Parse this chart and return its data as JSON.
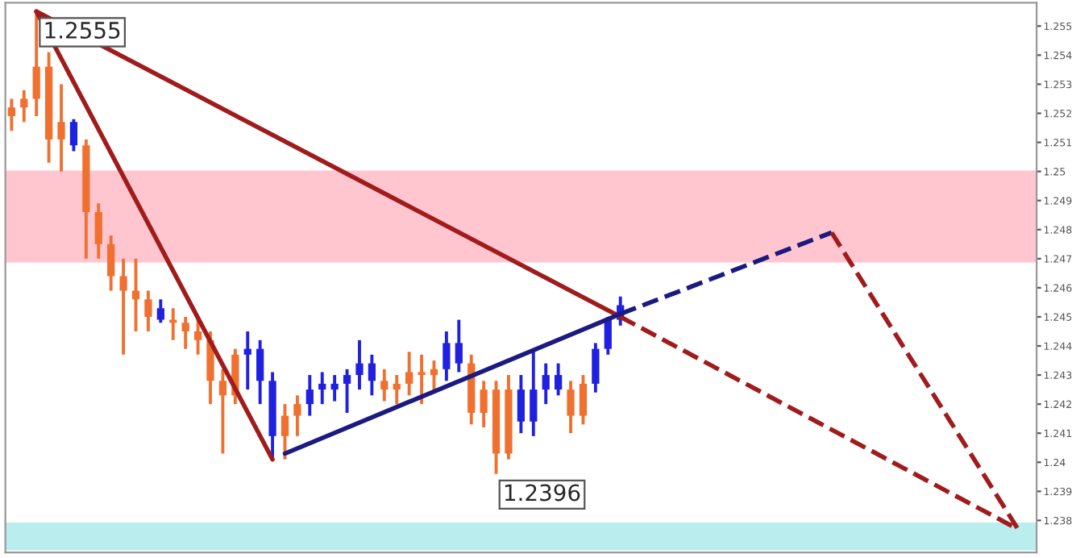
{
  "chart_data": {
    "type": "candlestick",
    "categories": [
      null,
      null,
      null,
      null,
      null,
      null,
      null,
      null,
      null,
      null,
      null,
      null,
      null,
      null,
      null,
      null,
      null,
      null,
      null,
      null,
      null,
      null,
      null,
      null,
      null,
      null,
      null,
      null,
      null,
      null,
      null,
      null,
      null,
      null,
      null,
      null,
      null,
      null,
      null,
      null,
      null,
      null,
      null,
      null,
      null,
      null,
      null,
      null,
      null,
      null,
      null,
      null,
      null,
      null,
      null,
      null,
      null,
      null,
      null,
      null,
      null,
      null,
      null,
      null,
      null,
      null,
      null,
      null,
      null,
      null,
      null,
      null,
      null,
      null,
      null,
      null,
      null,
      null,
      null,
      null,
      null,
      null,
      null
    ],
    "ohlc": [
      [
        1.2522,
        1.2525,
        1.2514,
        1.2519
      ],
      [
        1.2525,
        1.2528,
        1.2517,
        1.2522
      ],
      [
        1.2536,
        1.2555,
        1.2519,
        1.2525
      ],
      [
        1.2536,
        1.2541,
        1.2503,
        1.2511
      ],
      [
        1.2517,
        1.253,
        1.25,
        1.2511
      ],
      [
        1.2509,
        1.2518,
        1.2507,
        1.2517
      ],
      [
        1.2509,
        1.2511,
        1.247,
        1.2486
      ],
      [
        1.2486,
        1.2489,
        1.247,
        1.2475
      ],
      [
        1.2475,
        1.2478,
        1.2459,
        1.2464
      ],
      [
        1.2464,
        1.247,
        1.2437,
        1.2459
      ],
      [
        1.2459,
        1.247,
        1.2445,
        1.2456
      ],
      [
        1.2456,
        1.2459,
        1.2445,
        1.245
      ],
      [
        1.2449,
        1.2456,
        1.2448,
        1.2453
      ],
      [
        1.2449,
        1.2453,
        1.2442,
        1.2448
      ],
      [
        1.2448,
        1.245,
        1.2439,
        1.2445
      ],
      [
        1.2445,
        1.2449,
        1.2437,
        1.2442
      ],
      [
        1.2442,
        1.2445,
        1.242,
        1.2428
      ],
      [
        1.2428,
        1.2432,
        1.2403,
        1.2423
      ],
      [
        1.2437,
        1.2439,
        1.242,
        1.2423
      ],
      [
        1.2437,
        1.2445,
        1.2425,
        1.2439
      ],
      [
        1.2428,
        1.2442,
        1.242,
        1.2439
      ],
      [
        1.2409,
        1.2431,
        1.2401,
        1.2428
      ],
      [
        1.2416,
        1.242,
        1.2401,
        1.2409
      ],
      [
        1.242,
        1.2423,
        1.2409,
        1.2416
      ],
      [
        1.242,
        1.243,
        1.2416,
        1.2425
      ],
      [
        1.2425,
        1.2431,
        1.242,
        1.2427
      ],
      [
        1.2425,
        1.243,
        1.2421,
        1.2427
      ],
      [
        1.2427,
        1.2432,
        1.2417,
        1.243
      ],
      [
        1.243,
        1.2442,
        1.2425,
        1.2434
      ],
      [
        1.2428,
        1.2437,
        1.2423,
        1.2434
      ],
      [
        1.2428,
        1.2432,
        1.2421,
        1.2425
      ],
      [
        1.2427,
        1.243,
        1.242,
        1.2425
      ],
      [
        1.2431,
        1.2438,
        1.2423,
        1.2427
      ],
      [
        1.2431,
        1.2437,
        1.242,
        1.243
      ],
      [
        1.2432,
        1.2435,
        1.2425,
        1.243
      ],
      [
        1.2432,
        1.2445,
        1.2428,
        1.2441
      ],
      [
        1.2434,
        1.2449,
        1.2431,
        1.2441
      ],
      [
        1.2434,
        1.2437,
        1.2413,
        1.2417
      ],
      [
        1.2425,
        1.2428,
        1.2412,
        1.2417
      ],
      [
        1.2425,
        1.2428,
        1.2396,
        1.2403
      ],
      [
        1.2425,
        1.243,
        1.2401,
        1.2403
      ],
      [
        1.2414,
        1.243,
        1.241,
        1.2425
      ],
      [
        1.2414,
        1.2439,
        1.2409,
        1.2425
      ],
      [
        1.2425,
        1.2434,
        1.242,
        1.243
      ],
      [
        1.2425,
        1.2434,
        1.2423,
        1.243
      ],
      [
        1.2425,
        1.2428,
        1.241,
        1.2416
      ],
      [
        1.2427,
        1.243,
        1.2413,
        1.2416
      ],
      [
        1.2427,
        1.2441,
        1.2424,
        1.2439
      ],
      [
        1.2439,
        1.245,
        1.2437,
        1.2449
      ],
      [
        1.2449,
        1.2457,
        1.2447,
        1.2454
      ],
      null,
      null,
      null,
      null,
      null,
      null,
      null,
      null,
      null,
      null,
      null,
      null,
      null,
      null,
      null,
      null,
      null,
      null,
      null,
      null,
      null,
      null,
      null,
      null,
      null,
      null,
      null,
      null,
      null,
      null,
      null,
      null,
      null
    ],
    "colors": [
      "#f07030",
      "#f07030",
      "#f07030",
      "#f07030",
      "#f07030",
      "#2020e0",
      "#f07030",
      "#f07030",
      "#f07030",
      "#f07030",
      "#f07030",
      "#f07030",
      "#2020e0",
      "#f07030",
      "#f07030",
      "#f07030",
      "#f07030",
      "#f07030",
      "#f07030",
      "#2020e0",
      "#2020e0",
      "#2020e0",
      "#f07030",
      "#f07030",
      "#2020e0",
      "#2020e0",
      "#2020e0",
      "#2020e0",
      "#2020e0",
      "#2020e0",
      "#f07030",
      "#f07030",
      "#f07030",
      "#f07030",
      "#f07030",
      "#2020e0",
      "#2020e0",
      "#f07030",
      "#f07030",
      "#f07030",
      "#f07030",
      "#2020e0",
      "#2020e0",
      "#2020e0",
      "#2020e0",
      "#f07030",
      "#f07030",
      "#2020e0",
      "#2020e0",
      "#2020e0",
      null,
      null,
      null,
      null,
      null,
      null,
      null,
      null,
      null,
      null,
      null,
      null,
      null,
      null,
      null,
      null,
      null,
      null,
      null,
      null,
      null,
      null,
      null,
      null,
      null,
      null,
      null,
      null,
      null,
      null,
      null,
      null,
      null
    ],
    "series": [
      {
        "type": "line",
        "color": "#a01c1c",
        "line_style": "solid",
        "values": [
          null,
          null,
          1.2555,
          null,
          null,
          null,
          null,
          null,
          null,
          null,
          null,
          null,
          null,
          null,
          null,
          null,
          null,
          null,
          null,
          null,
          null,
          1.2401,
          null,
          null,
          null,
          null,
          null,
          null,
          null,
          null,
          null,
          null,
          null,
          null,
          null,
          null,
          null,
          null,
          null,
          null,
          null,
          null,
          null,
          null,
          null,
          null,
          null,
          null,
          null,
          null,
          null,
          null,
          null,
          null,
          null,
          null,
          null,
          null,
          null,
          null,
          null,
          null,
          null,
          null,
          null,
          null,
          null,
          null,
          null,
          null,
          null,
          null,
          null,
          null,
          null,
          null,
          null,
          null,
          null,
          null,
          null,
          null,
          null
        ]
      },
      {
        "type": "line",
        "color": "#a01c1c",
        "line_style": "solid",
        "values": [
          null,
          null,
          1.2555,
          null,
          null,
          null,
          null,
          null,
          null,
          null,
          null,
          null,
          null,
          null,
          null,
          null,
          null,
          null,
          null,
          null,
          null,
          null,
          null,
          null,
          null,
          null,
          null,
          null,
          null,
          null,
          null,
          null,
          null,
          null,
          null,
          null,
          null,
          null,
          null,
          null,
          null,
          null,
          null,
          null,
          null,
          null,
          null,
          null,
          null,
          1.245,
          null,
          null,
          null,
          null,
          null,
          null,
          null,
          null,
          null,
          null,
          null,
          null,
          null,
          null,
          null,
          null,
          null,
          null,
          null,
          null,
          null,
          null,
          null,
          null,
          null,
          null,
          null,
          null,
          null,
          null,
          null,
          null,
          null
        ]
      },
      {
        "type": "line",
        "color": "#a01c1c",
        "line_style": "dashed",
        "values": [
          null,
          null,
          null,
          null,
          null,
          null,
          null,
          null,
          null,
          null,
          null,
          null,
          null,
          null,
          null,
          null,
          null,
          null,
          null,
          null,
          null,
          null,
          null,
          null,
          null,
          null,
          null,
          null,
          null,
          null,
          null,
          null,
          null,
          null,
          null,
          null,
          null,
          null,
          null,
          null,
          null,
          null,
          null,
          null,
          null,
          null,
          null,
          null,
          null,
          1.245,
          null,
          null,
          null,
          null,
          null,
          null,
          null,
          null,
          null,
          null,
          null,
          null,
          null,
          null,
          null,
          null,
          null,
          null,
          null,
          null,
          null,
          null,
          null,
          null,
          null,
          null,
          null,
          null,
          null,
          null,
          null,
          1.2377,
          null
        ]
      },
      {
        "type": "line",
        "color": "#1a1a80",
        "line_style": "solid",
        "values": [
          null,
          null,
          null,
          null,
          null,
          null,
          null,
          null,
          null,
          null,
          null,
          null,
          null,
          null,
          null,
          null,
          null,
          null,
          null,
          null,
          null,
          null,
          1.2403,
          null,
          null,
          null,
          null,
          null,
          null,
          null,
          null,
          null,
          null,
          null,
          null,
          null,
          null,
          null,
          null,
          null,
          null,
          null,
          null,
          null,
          null,
          null,
          null,
          null,
          null,
          1.2451,
          null,
          null,
          null,
          null,
          null,
          null,
          null,
          null,
          null,
          null,
          null,
          null,
          null,
          null,
          null,
          null,
          null,
          null,
          null,
          null,
          null,
          null,
          null,
          null,
          null,
          null,
          null,
          null,
          null,
          null,
          null,
          null,
          null
        ]
      },
      {
        "type": "line",
        "color": "#1a1a80",
        "line_style": "dashed",
        "values": [
          null,
          null,
          null,
          null,
          null,
          null,
          null,
          null,
          null,
          null,
          null,
          null,
          null,
          null,
          null,
          null,
          null,
          null,
          null,
          null,
          null,
          null,
          null,
          null,
          null,
          null,
          null,
          null,
          null,
          null,
          null,
          null,
          null,
          null,
          null,
          null,
          null,
          null,
          null,
          null,
          null,
          null,
          null,
          null,
          null,
          null,
          null,
          null,
          null,
          1.2451,
          null,
          null,
          null,
          null,
          null,
          null,
          null,
          null,
          null,
          null,
          null,
          null,
          null,
          null,
          null,
          null,
          1.2479,
          null,
          null,
          null,
          null,
          null,
          null,
          null,
          null,
          null,
          null,
          null,
          null,
          null,
          null,
          null,
          null
        ]
      },
      {
        "type": "line",
        "color": "#a01c1c",
        "line_style": "dashed",
        "values": [
          null,
          null,
          null,
          null,
          null,
          null,
          null,
          null,
          null,
          null,
          null,
          null,
          null,
          null,
          null,
          null,
          null,
          null,
          null,
          null,
          null,
          null,
          null,
          null,
          null,
          null,
          null,
          null,
          null,
          null,
          null,
          null,
          null,
          null,
          null,
          null,
          null,
          null,
          null,
          null,
          null,
          null,
          null,
          null,
          null,
          null,
          null,
          null,
          null,
          null,
          null,
          null,
          null,
          null,
          null,
          null,
          null,
          null,
          null,
          null,
          null,
          null,
          null,
          null,
          null,
          null,
          1.2479,
          null,
          null,
          null,
          null,
          null,
          null,
          null,
          null,
          null,
          null,
          null,
          null,
          null,
          null,
          1.2377,
          null
        ]
      }
    ],
    "bands": [
      {
        "axis": "y",
        "from": 1.2469,
        "to": 1.25,
        "color": "#ffc0cb"
      },
      {
        "axis": "y",
        "from": 1.237,
        "to": 1.2379,
        "color": "#b3ecec"
      }
    ],
    "annotations": [
      "1.2555",
      "1.2396"
    ],
    "ylim": [
      1.2369,
      1.2558
    ],
    "yticks": [
      1.238,
      1.239,
      1.24,
      1.241,
      1.242,
      1.243,
      1.244,
      1.245,
      1.246,
      1.247,
      1.248,
      1.249,
      1.25,
      1.251,
      1.252,
      1.253,
      1.254,
      1.255
    ],
    "tick_labels": "y"
  }
}
